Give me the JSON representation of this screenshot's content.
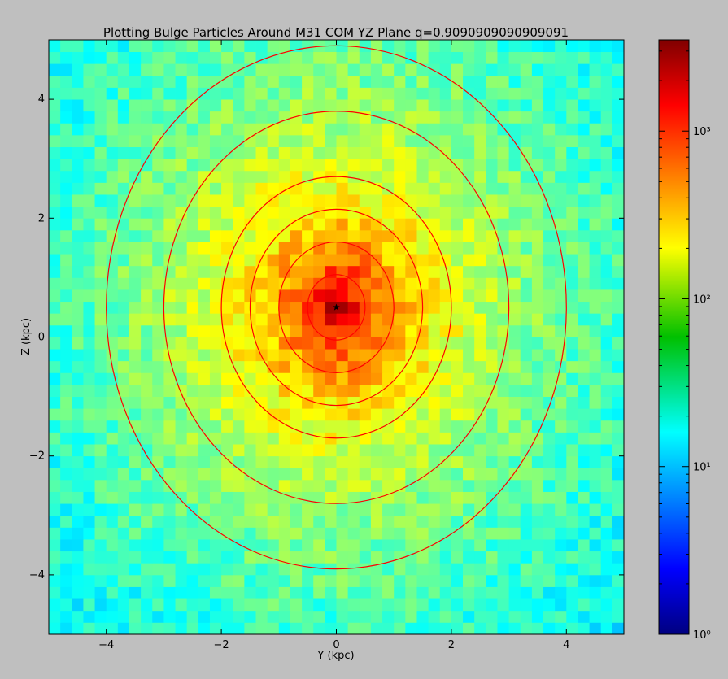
{
  "chart_data": {
    "type": "heatmap",
    "title": "Plotting Bulge Particles Around M31 COM YZ Plane q=0.9090909090909091",
    "xlabel": "Y (kpc)",
    "ylabel": "Z (kpc)",
    "xlim": [
      -5,
      5
    ],
    "ylim": [
      -5,
      5
    ],
    "xticks": [
      -4,
      -2,
      0,
      2,
      4
    ],
    "yticks": [
      -4,
      -2,
      0,
      2,
      4
    ],
    "bins": 50,
    "colormap": "jet",
    "color_scale": "log",
    "colorbar": {
      "min": 1,
      "max": 3500,
      "ticks": [
        {
          "value": 1,
          "label": "10⁰"
        },
        {
          "value": 10,
          "label": "10¹"
        },
        {
          "value": 100,
          "label": "10²"
        },
        {
          "value": 1000,
          "label": "10³"
        }
      ]
    },
    "density_peak": {
      "x": 0.0,
      "y": 0.5,
      "count": 3500
    },
    "center_marker": {
      "x": 0.0,
      "y": 0.5,
      "symbol": "star"
    },
    "contour_color": "#ff0000",
    "contours": [
      {
        "level": 1,
        "center": [
          0,
          0.5
        ],
        "semi_x": 0.5,
        "semi_y": 0.55
      },
      {
        "level": 2,
        "center": [
          0,
          0.5
        ],
        "semi_x": 1.0,
        "semi_y": 1.1
      },
      {
        "level": 3,
        "center": [
          0,
          0.5
        ],
        "semi_x": 1.5,
        "semi_y": 1.65
      },
      {
        "level": 4,
        "center": [
          0,
          0.5
        ],
        "semi_x": 2.0,
        "semi_y": 2.2
      },
      {
        "level": 5,
        "center": [
          0,
          0.5
        ],
        "semi_x": 3.0,
        "semi_y": 3.3
      },
      {
        "level": 6,
        "center": [
          0,
          0.5
        ],
        "semi_x": 4.0,
        "semi_y": 4.4
      }
    ],
    "grid": false
  }
}
